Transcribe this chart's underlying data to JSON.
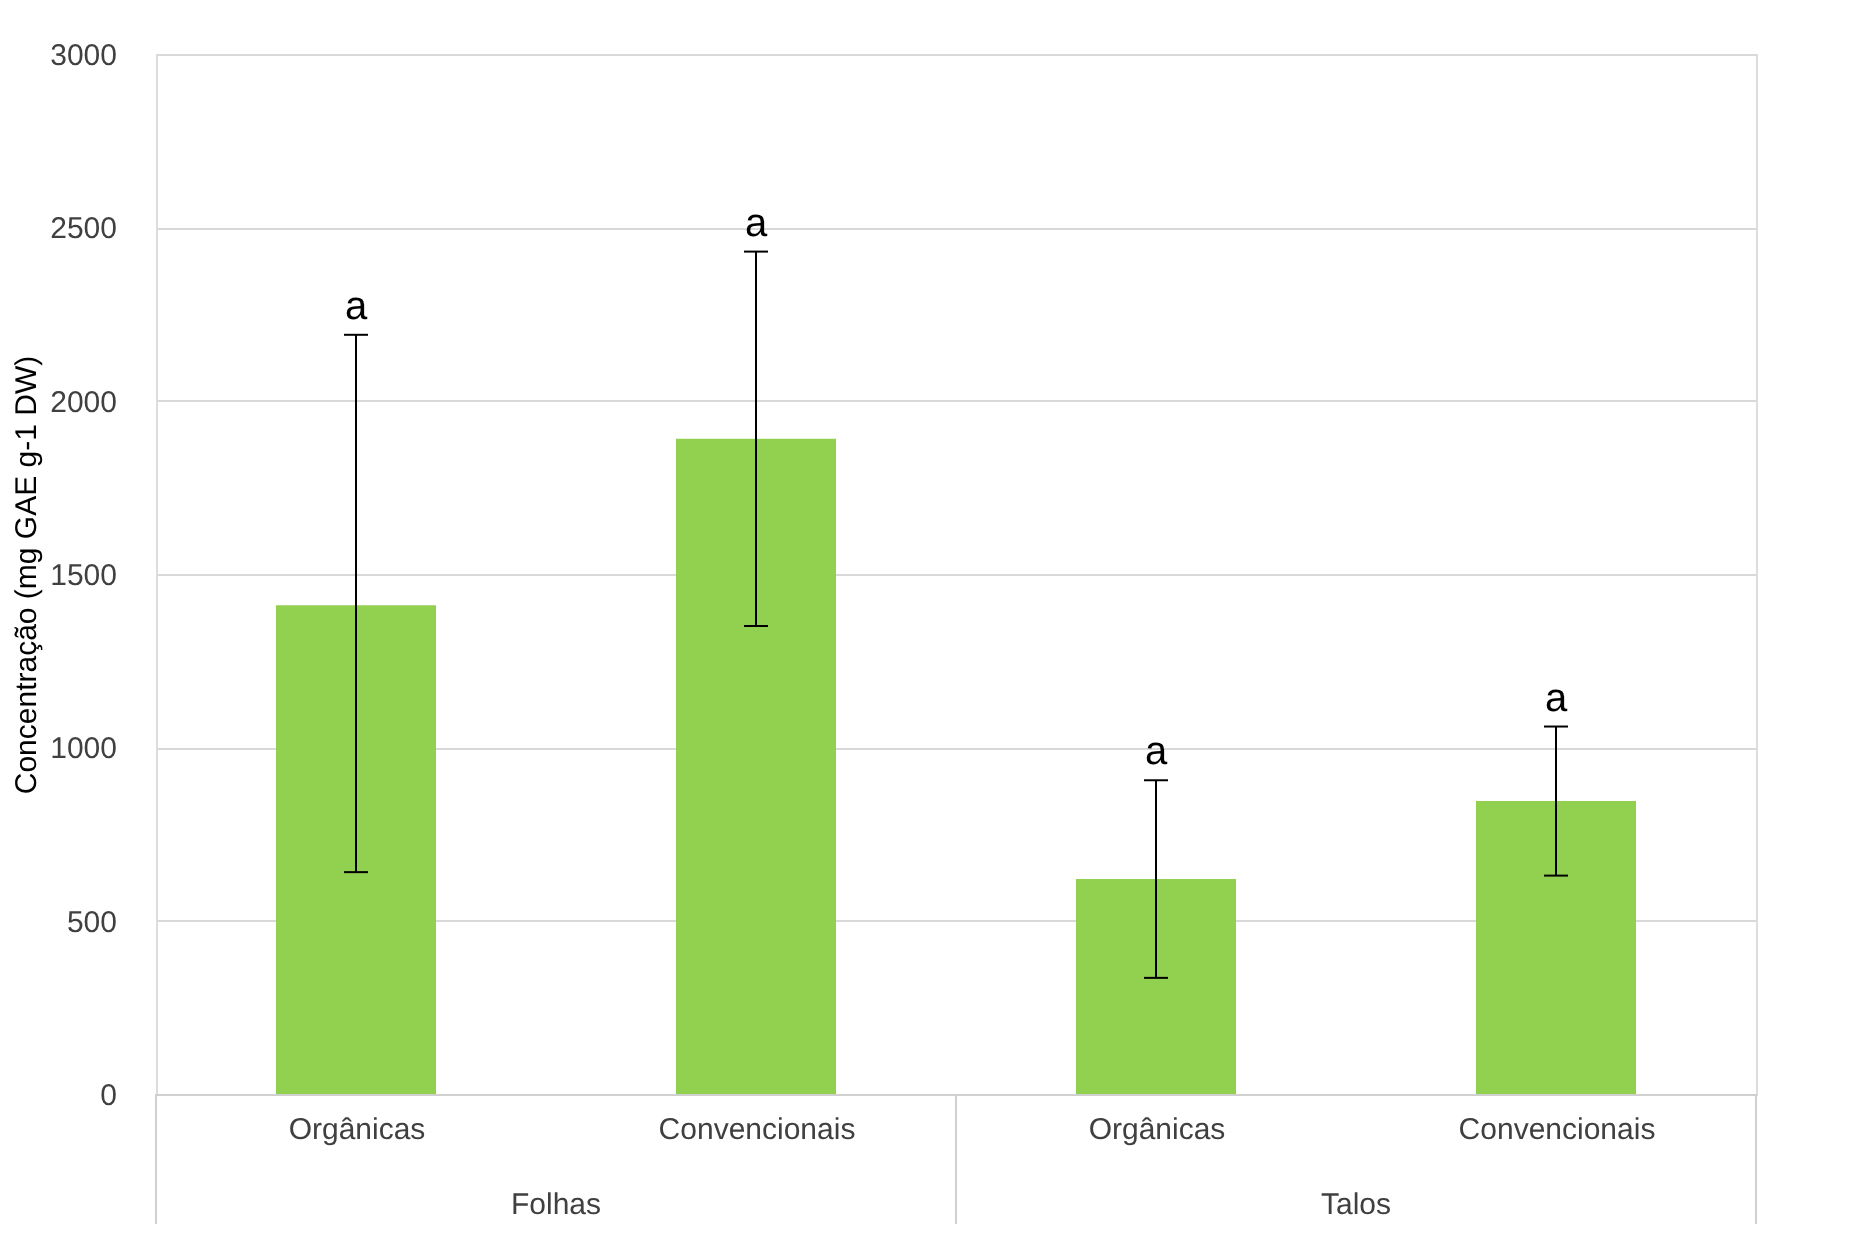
{
  "chart_data": {
    "type": "bar",
    "ylabel": "Concentração (mg GAE g-1 DW)",
    "categories": [
      "Orgânicas",
      "Convencionais",
      "Orgânicas",
      "Convencionais"
    ],
    "values": [
      1410,
      1890,
      620,
      845
    ],
    "color": "#92d050",
    "errors": [
      [
        640,
        2190
      ],
      [
        1350,
        2430
      ],
      [
        335,
        905
      ],
      [
        630,
        1060
      ]
    ],
    "ylim": [
      0,
      3000
    ],
    "yticks": [
      0,
      500,
      1000,
      1500,
      2000,
      2500,
      3000
    ],
    "grid": "y",
    "annotations": [
      {
        "text": "a",
        "y": 2190
      },
      {
        "text": "a",
        "y": 2430
      },
      {
        "text": "a",
        "y": 905
      },
      {
        "text": "a",
        "y": 1060
      },
      "Folhas",
      "Talos"
    ]
  }
}
